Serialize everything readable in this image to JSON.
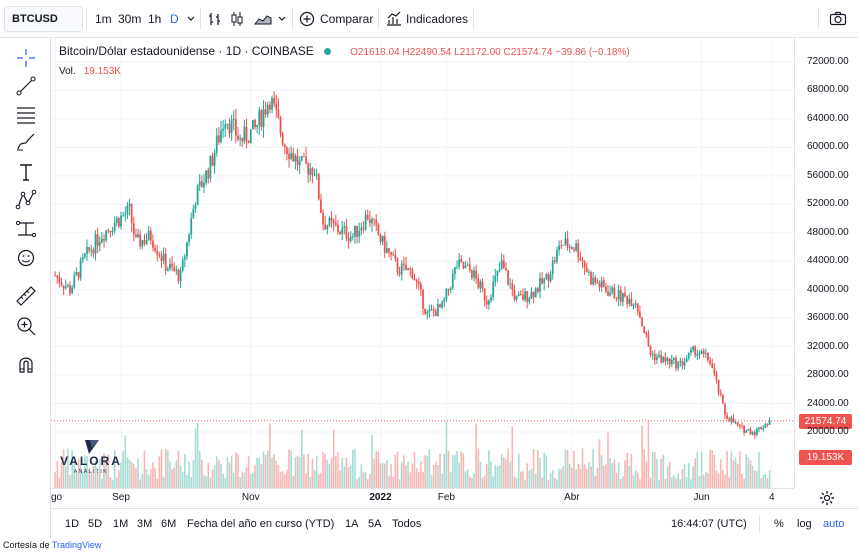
{
  "toolbar": {
    "symbol": "BTCUSD",
    "intervals": [
      "1m",
      "30m",
      "1h",
      "D"
    ],
    "compare_label": "Comparar",
    "indicators_label": "Indicadores",
    "icons": [
      "bar-style-icon",
      "candles-icon",
      "area-icon",
      "chevron-down-icon",
      "plus-circle-icon",
      "indicators-icon",
      "camera-icon"
    ]
  },
  "left_tools": [
    "crosshair-icon",
    "trend-line-icon",
    "fib-icon",
    "brush-icon",
    "text-icon",
    "pattern-icon",
    "measure-icon",
    "emoji-icon",
    "ruler-icon",
    "zoom-in-icon",
    "magnet-icon"
  ],
  "legend": {
    "title": "Bitcoin/Dólar estadounidense · 1D · COINBASE",
    "open_key": "O",
    "open": "21618.04",
    "high_key": "H",
    "high": "22490.54",
    "low_key": "L",
    "low": "21172.00",
    "close_key": "C",
    "close": "21574.74",
    "change": "−39.86 (−0.18%)",
    "vol_label": "Vol.",
    "vol_value": "19.153K"
  },
  "logo": {
    "text": "VALORA",
    "sub": "ANALITIK"
  },
  "colors": {
    "up": "#26a69a",
    "down": "#ef5350",
    "accent": "#2962ff",
    "grid": "#f0f3fa"
  },
  "chart_data": {
    "type": "candlestick",
    "symbol": "BTCUSD",
    "interval": "1D",
    "exchange": "COINBASE",
    "y_ticks": [
      72000,
      68000,
      64000,
      60000,
      56000,
      52000,
      48000,
      44000,
      40000,
      36000,
      32000,
      28000,
      24000,
      20000
    ],
    "y_tick_labels": [
      "72000.00",
      "68000.00",
      "64000.00",
      "60000.00",
      "56000.00",
      "52000.00",
      "48000.00",
      "44000.00",
      "40000.00",
      "36000.00",
      "32000.00",
      "28000.00",
      "24000.00",
      "20000.00"
    ],
    "x_tick_labels": [
      "go",
      "Sep",
      "Nov",
      "2022",
      "Feb",
      "Abr",
      "Jun",
      "4"
    ],
    "last_price_label": "21574.74",
    "last_volume_label": "19.153K",
    "price_path": [
      {
        "date": "2021-08-01",
        "close": 42000
      },
      {
        "date": "2021-08-08",
        "close": 40000
      },
      {
        "date": "2021-08-15",
        "close": 44500
      },
      {
        "date": "2021-08-22",
        "close": 47500
      },
      {
        "date": "2021-08-29",
        "close": 49500
      },
      {
        "date": "2021-09-05",
        "close": 51000
      },
      {
        "date": "2021-09-08",
        "close": 46500
      },
      {
        "date": "2021-09-15",
        "close": 47500
      },
      {
        "date": "2021-09-22",
        "close": 43500
      },
      {
        "date": "2021-09-29",
        "close": 41800
      },
      {
        "date": "2021-10-06",
        "close": 53000
      },
      {
        "date": "2021-10-13",
        "close": 57500
      },
      {
        "date": "2021-10-20",
        "close": 64500
      },
      {
        "date": "2021-10-27",
        "close": 61000
      },
      {
        "date": "2021-11-03",
        "close": 62500
      },
      {
        "date": "2021-11-10",
        "close": 67000
      },
      {
        "date": "2021-11-17",
        "close": 60500
      },
      {
        "date": "2021-11-24",
        "close": 57500
      },
      {
        "date": "2021-12-01",
        "close": 57000
      },
      {
        "date": "2021-12-05",
        "close": 49500
      },
      {
        "date": "2021-12-12",
        "close": 48500
      },
      {
        "date": "2021-12-19",
        "close": 47500
      },
      {
        "date": "2021-12-26",
        "close": 50500
      },
      {
        "date": "2022-01-02",
        "close": 46500
      },
      {
        "date": "2022-01-09",
        "close": 43000
      },
      {
        "date": "2022-01-16",
        "close": 42500
      },
      {
        "date": "2022-01-23",
        "close": 36500
      },
      {
        "date": "2022-01-30",
        "close": 37500
      },
      {
        "date": "2022-02-06",
        "close": 43500
      },
      {
        "date": "2022-02-13",
        "close": 42500
      },
      {
        "date": "2022-02-20",
        "close": 38500
      },
      {
        "date": "2022-02-27",
        "close": 43500
      },
      {
        "date": "2022-03-06",
        "close": 38500
      },
      {
        "date": "2022-03-13",
        "close": 39500
      },
      {
        "date": "2022-03-20",
        "close": 41500
      },
      {
        "date": "2022-03-27",
        "close": 46500
      },
      {
        "date": "2022-04-03",
        "close": 46000
      },
      {
        "date": "2022-04-10",
        "close": 41500
      },
      {
        "date": "2022-04-17",
        "close": 40000
      },
      {
        "date": "2022-04-24",
        "close": 39000
      },
      {
        "date": "2022-05-01",
        "close": 38500
      },
      {
        "date": "2022-05-08",
        "close": 31000
      },
      {
        "date": "2022-05-15",
        "close": 30000
      },
      {
        "date": "2022-05-22",
        "close": 29500
      },
      {
        "date": "2022-05-29",
        "close": 31500
      },
      {
        "date": "2022-06-05",
        "close": 30000
      },
      {
        "date": "2022-06-12",
        "close": 22500
      },
      {
        "date": "2022-06-19",
        "close": 20500
      },
      {
        "date": "2022-06-26",
        "close": 20000
      },
      {
        "date": "2022-07-03",
        "close": 21574.74
      }
    ]
  },
  "time_scale": {
    "labels": [
      "go",
      "Sep",
      "Nov",
      "2022",
      "Feb",
      "Abr",
      "Jun",
      "4"
    ]
  },
  "bottom_bar": {
    "ranges": [
      "1D",
      "5D",
      "1M",
      "3M",
      "6M",
      "Fecha del año en curso (YTD)",
      "1A",
      "5A",
      "Todos"
    ],
    "clock": "16:44:07 (UTC)",
    "percent_label": "%",
    "log_label": "log",
    "auto_label": "auto"
  },
  "credit": {
    "prefix": "Cortesía de",
    "link": "TradingView"
  }
}
